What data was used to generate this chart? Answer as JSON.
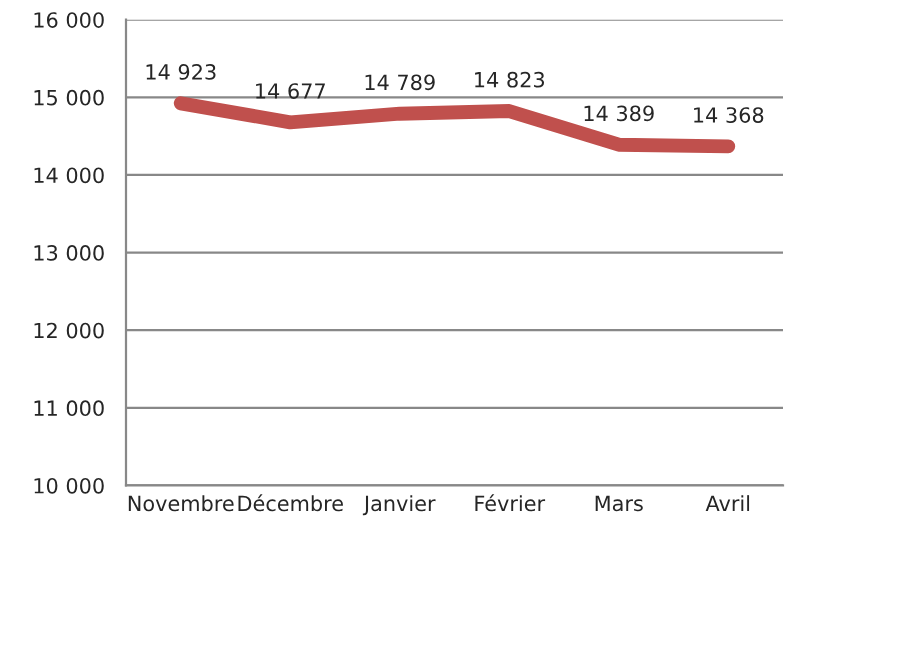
{
  "chart_data": {
    "type": "line",
    "categories": [
      "Novembre",
      "Décembre",
      "Janvier",
      "Février",
      "Mars",
      "Avril"
    ],
    "series": [
      {
        "color": "#c0504d",
        "values": [
          14923,
          14677,
          14789,
          14823,
          14389,
          14368
        ],
        "value_labels": [
          "14 923",
          "14 677",
          "14 789",
          "14 823",
          "14 389",
          "14 368"
        ]
      }
    ],
    "ylim": [
      10000,
      16000
    ],
    "yticks": [
      {
        "value": 10000,
        "label": "10 000"
      },
      {
        "value": 11000,
        "label": "11 000"
      },
      {
        "value": 12000,
        "label": "12 000"
      },
      {
        "value": 13000,
        "label": "13 000"
      },
      {
        "value": 14000,
        "label": "14 000"
      },
      {
        "value": 15000,
        "label": "15 000"
      },
      {
        "value": 16000,
        "label": "16 000"
      }
    ],
    "grid": "y",
    "legend": false,
    "marker": "none",
    "line_style": "solid"
  }
}
